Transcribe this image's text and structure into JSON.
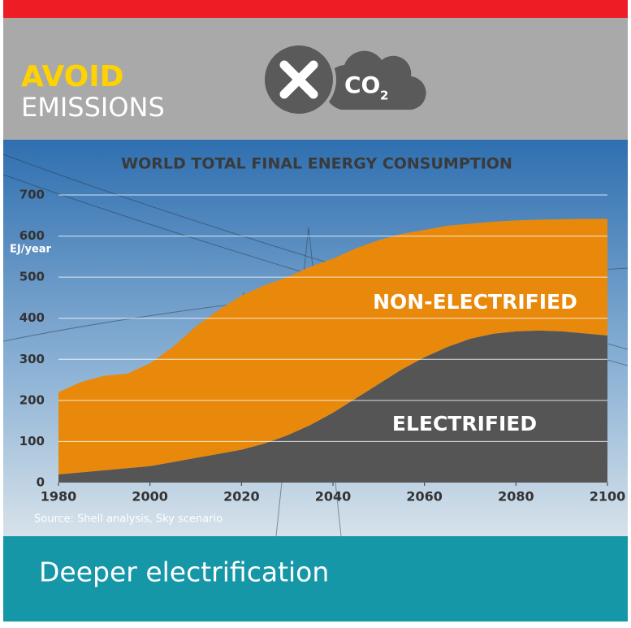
{
  "header": {
    "title_highlight": "AVOID",
    "title": "EMISSIONS",
    "icon_text": "CO",
    "icon_subscript": "2"
  },
  "chart_data": {
    "type": "area",
    "title": "WORLD TOTAL FINAL ENERGY CONSUMPTION",
    "y_label": "EJ/year",
    "x": [
      1980,
      1985,
      1990,
      1995,
      2000,
      2005,
      2010,
      2015,
      2020,
      2025,
      2030,
      2035,
      2040,
      2045,
      2050,
      2055,
      2060,
      2065,
      2070,
      2075,
      2080,
      2085,
      2090,
      2095,
      2100
    ],
    "series": [
      {
        "name": "ELECTRIFIED",
        "color": "#555555",
        "values": [
          20,
          25,
          30,
          35,
          40,
          50,
          60,
          70,
          80,
          95,
          115,
          140,
          170,
          205,
          240,
          275,
          305,
          330,
          350,
          362,
          368,
          370,
          368,
          363,
          358
        ]
      },
      {
        "name": "NON-ELECTRIFIED",
        "color": "#e8890c",
        "values": [
          200,
          220,
          230,
          230,
          250,
          280,
          320,
          350,
          375,
          385,
          385,
          385,
          375,
          365,
          350,
          330,
          310,
          295,
          280,
          273,
          270,
          270,
          273,
          279,
          284
        ]
      }
    ],
    "stacked": true,
    "xlim": [
      1980,
      2100
    ],
    "xticks": [
      1980,
      2000,
      2020,
      2040,
      2060,
      2080,
      2100
    ],
    "ylim": [
      0,
      700
    ],
    "yticks": [
      0,
      100,
      200,
      300,
      400,
      500,
      600,
      700
    ],
    "grid": true,
    "source": "Source: Shell analysis, Sky scenario"
  },
  "footer": {
    "text": "Deeper electrification"
  }
}
